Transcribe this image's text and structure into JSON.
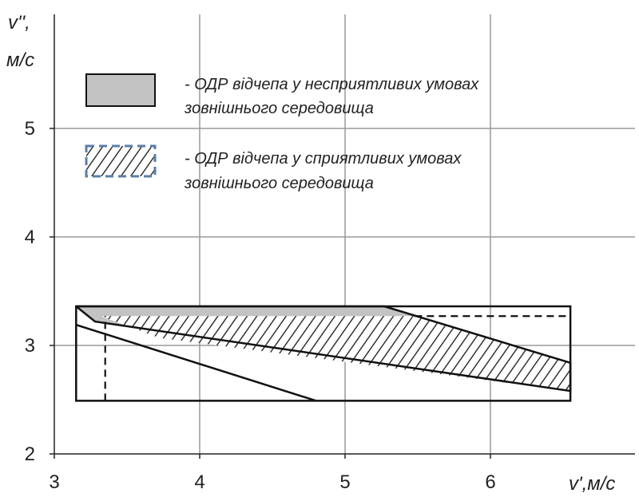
{
  "chart_data": {
    "type": "area",
    "xlabel": "v',м/с",
    "ylabel_line1": "v'',",
    "ylabel_line2": "м/с",
    "xlim": [
      3,
      6.7
    ],
    "ylim": [
      2,
      5.8
    ],
    "xticks": [
      3,
      4,
      5,
      6
    ],
    "yticks": [
      2,
      3,
      4,
      5
    ],
    "grid": true,
    "legend_position": "top",
    "legend": [
      {
        "line1": "- ОДР відчепа у несприятливих умовах",
        "line2": "зовнішнього середовища",
        "fill": "solid-gray"
      },
      {
        "line1": "- ОДР відчепа у сприятливих умовах",
        "line2": "зовнішнього середовища",
        "fill": "hatched"
      }
    ],
    "colors": {
      "gray_fill": "#c3c3c3",
      "hatch": "#333333",
      "dashed_border": "#5a7fa8",
      "grid": "#9a9a9a",
      "line": "#111111"
    },
    "regions": {
      "bounding_box": [
        [
          3.15,
          2.49
        ],
        [
          6.55,
          2.49
        ],
        [
          6.55,
          3.36
        ],
        [
          3.15,
          3.36
        ]
      ],
      "unfavorable_polygon": [
        [
          3.15,
          3.36
        ],
        [
          5.27,
          3.36
        ],
        [
          6.55,
          2.84
        ],
        [
          6.55,
          2.58
        ],
        [
          3.28,
          3.22
        ]
      ],
      "favorable_polygon": [
        [
          3.32,
          3.27
        ],
        [
          5.48,
          3.27
        ],
        [
          6.55,
          2.84
        ],
        [
          6.55,
          2.58
        ],
        [
          3.72,
          3.07
        ]
      ]
    },
    "lines": {
      "steep_line": [
        [
          3.15,
          3.19
        ],
        [
          4.8,
          2.49
        ]
      ],
      "dashed_vertical": [
        [
          3.35,
          2.49
        ],
        [
          3.35,
          3.27
        ]
      ],
      "dashed_horizontal": [
        [
          5.48,
          3.27
        ],
        [
          6.55,
          3.27
        ]
      ]
    }
  }
}
